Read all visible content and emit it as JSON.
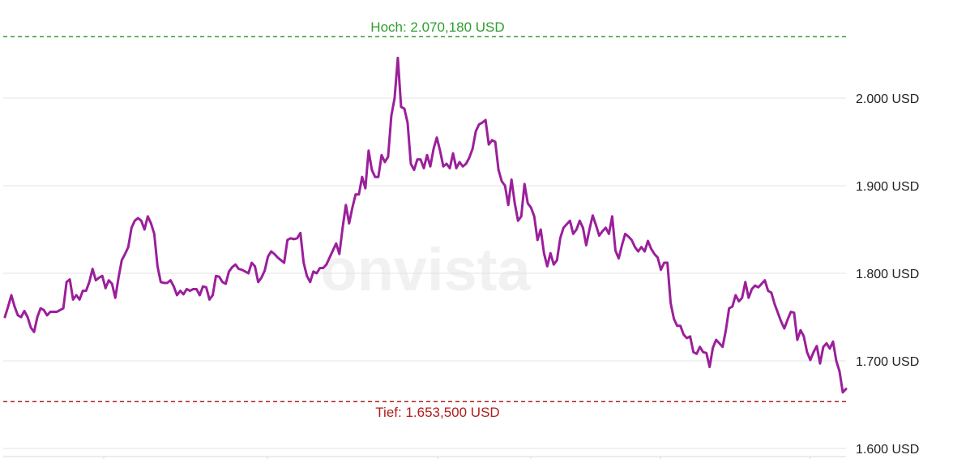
{
  "chart_data": {
    "type": "line",
    "title": "",
    "xlabel": "",
    "ylabel": "",
    "ylim": [
      1590,
      2090
    ],
    "yticks": [
      1600,
      1700,
      1800,
      1900,
      2000
    ],
    "ytick_labels": [
      "1.600 USD",
      "1.700 USD",
      "1.800 USD",
      "1.900 USD",
      "2.000 USD"
    ],
    "grid": true,
    "legend": "none",
    "watermark": "onvista",
    "reference_lines": [
      {
        "name": "high",
        "label": "Hoch: 2.070,180 USD",
        "value": 2070.18,
        "color": "#2e9e2e"
      },
      {
        "name": "low",
        "label": "Tief: 1.653,500 USD",
        "value": 1653.5,
        "color": "#b01e1e"
      }
    ],
    "series": [
      {
        "color": "#9b1f9b",
        "values": [
          1750,
          1762,
          1775,
          1762,
          1752,
          1750,
          1757,
          1750,
          1738,
          1733,
          1750,
          1760,
          1758,
          1752,
          1756,
          1756,
          1756,
          1758,
          1760,
          1790,
          1793,
          1770,
          1775,
          1770,
          1780,
          1780,
          1790,
          1805,
          1792,
          1795,
          1797,
          1783,
          1792,
          1788,
          1772,
          1795,
          1815,
          1822,
          1830,
          1852,
          1860,
          1863,
          1860,
          1850,
          1865,
          1857,
          1845,
          1808,
          1790,
          1789,
          1789,
          1792,
          1785,
          1775,
          1780,
          1776,
          1782,
          1780,
          1782,
          1782,
          1775,
          1785,
          1784,
          1770,
          1775,
          1797,
          1796,
          1790,
          1788,
          1802,
          1807,
          1810,
          1805,
          1804,
          1802,
          1800,
          1812,
          1808,
          1790,
          1795,
          1803,
          1819,
          1825,
          1822,
          1818,
          1815,
          1812,
          1838,
          1840,
          1839,
          1840,
          1846,
          1812,
          1797,
          1790,
          1802,
          1800,
          1806,
          1806,
          1810,
          1818,
          1826,
          1834,
          1822,
          1852,
          1878,
          1857,
          1875,
          1890,
          1890,
          1910,
          1897,
          1940,
          1918,
          1910,
          1910,
          1935,
          1927,
          1933,
          1980,
          2000,
          2046,
          1990,
          1988,
          1972,
          1925,
          1918,
          1930,
          1930,
          1920,
          1935,
          1922,
          1942,
          1955,
          1940,
          1922,
          1925,
          1920,
          1937,
          1920,
          1927,
          1922,
          1925,
          1932,
          1942,
          1962,
          1970,
          1972,
          1975,
          1947,
          1952,
          1950,
          1918,
          1905,
          1900,
          1878,
          1907,
          1880,
          1860,
          1865,
          1902,
          1880,
          1875,
          1865,
          1838,
          1850,
          1823,
          1808,
          1823,
          1810,
          1815,
          1840,
          1852,
          1856,
          1860,
          1845,
          1850,
          1860,
          1852,
          1832,
          1850,
          1866,
          1855,
          1843,
          1848,
          1852,
          1845,
          1865,
          1826,
          1817,
          1832,
          1845,
          1842,
          1838,
          1830,
          1825,
          1830,
          1825,
          1837,
          1828,
          1822,
          1818,
          1804,
          1812,
          1812,
          1766,
          1748,
          1740,
          1740,
          1730,
          1726,
          1728,
          1710,
          1708,
          1716,
          1710,
          1709,
          1693,
          1715,
          1724,
          1720,
          1716,
          1735,
          1760,
          1762,
          1775,
          1768,
          1772,
          1790,
          1772,
          1782,
          1786,
          1784,
          1788,
          1792,
          1780,
          1778,
          1765,
          1755,
          1745,
          1737,
          1747,
          1756,
          1755,
          1724,
          1735,
          1728,
          1710,
          1701,
          1710,
          1717,
          1697,
          1716,
          1720,
          1714,
          1722,
          1700,
          1688,
          1664,
          1668
        ]
      }
    ]
  }
}
